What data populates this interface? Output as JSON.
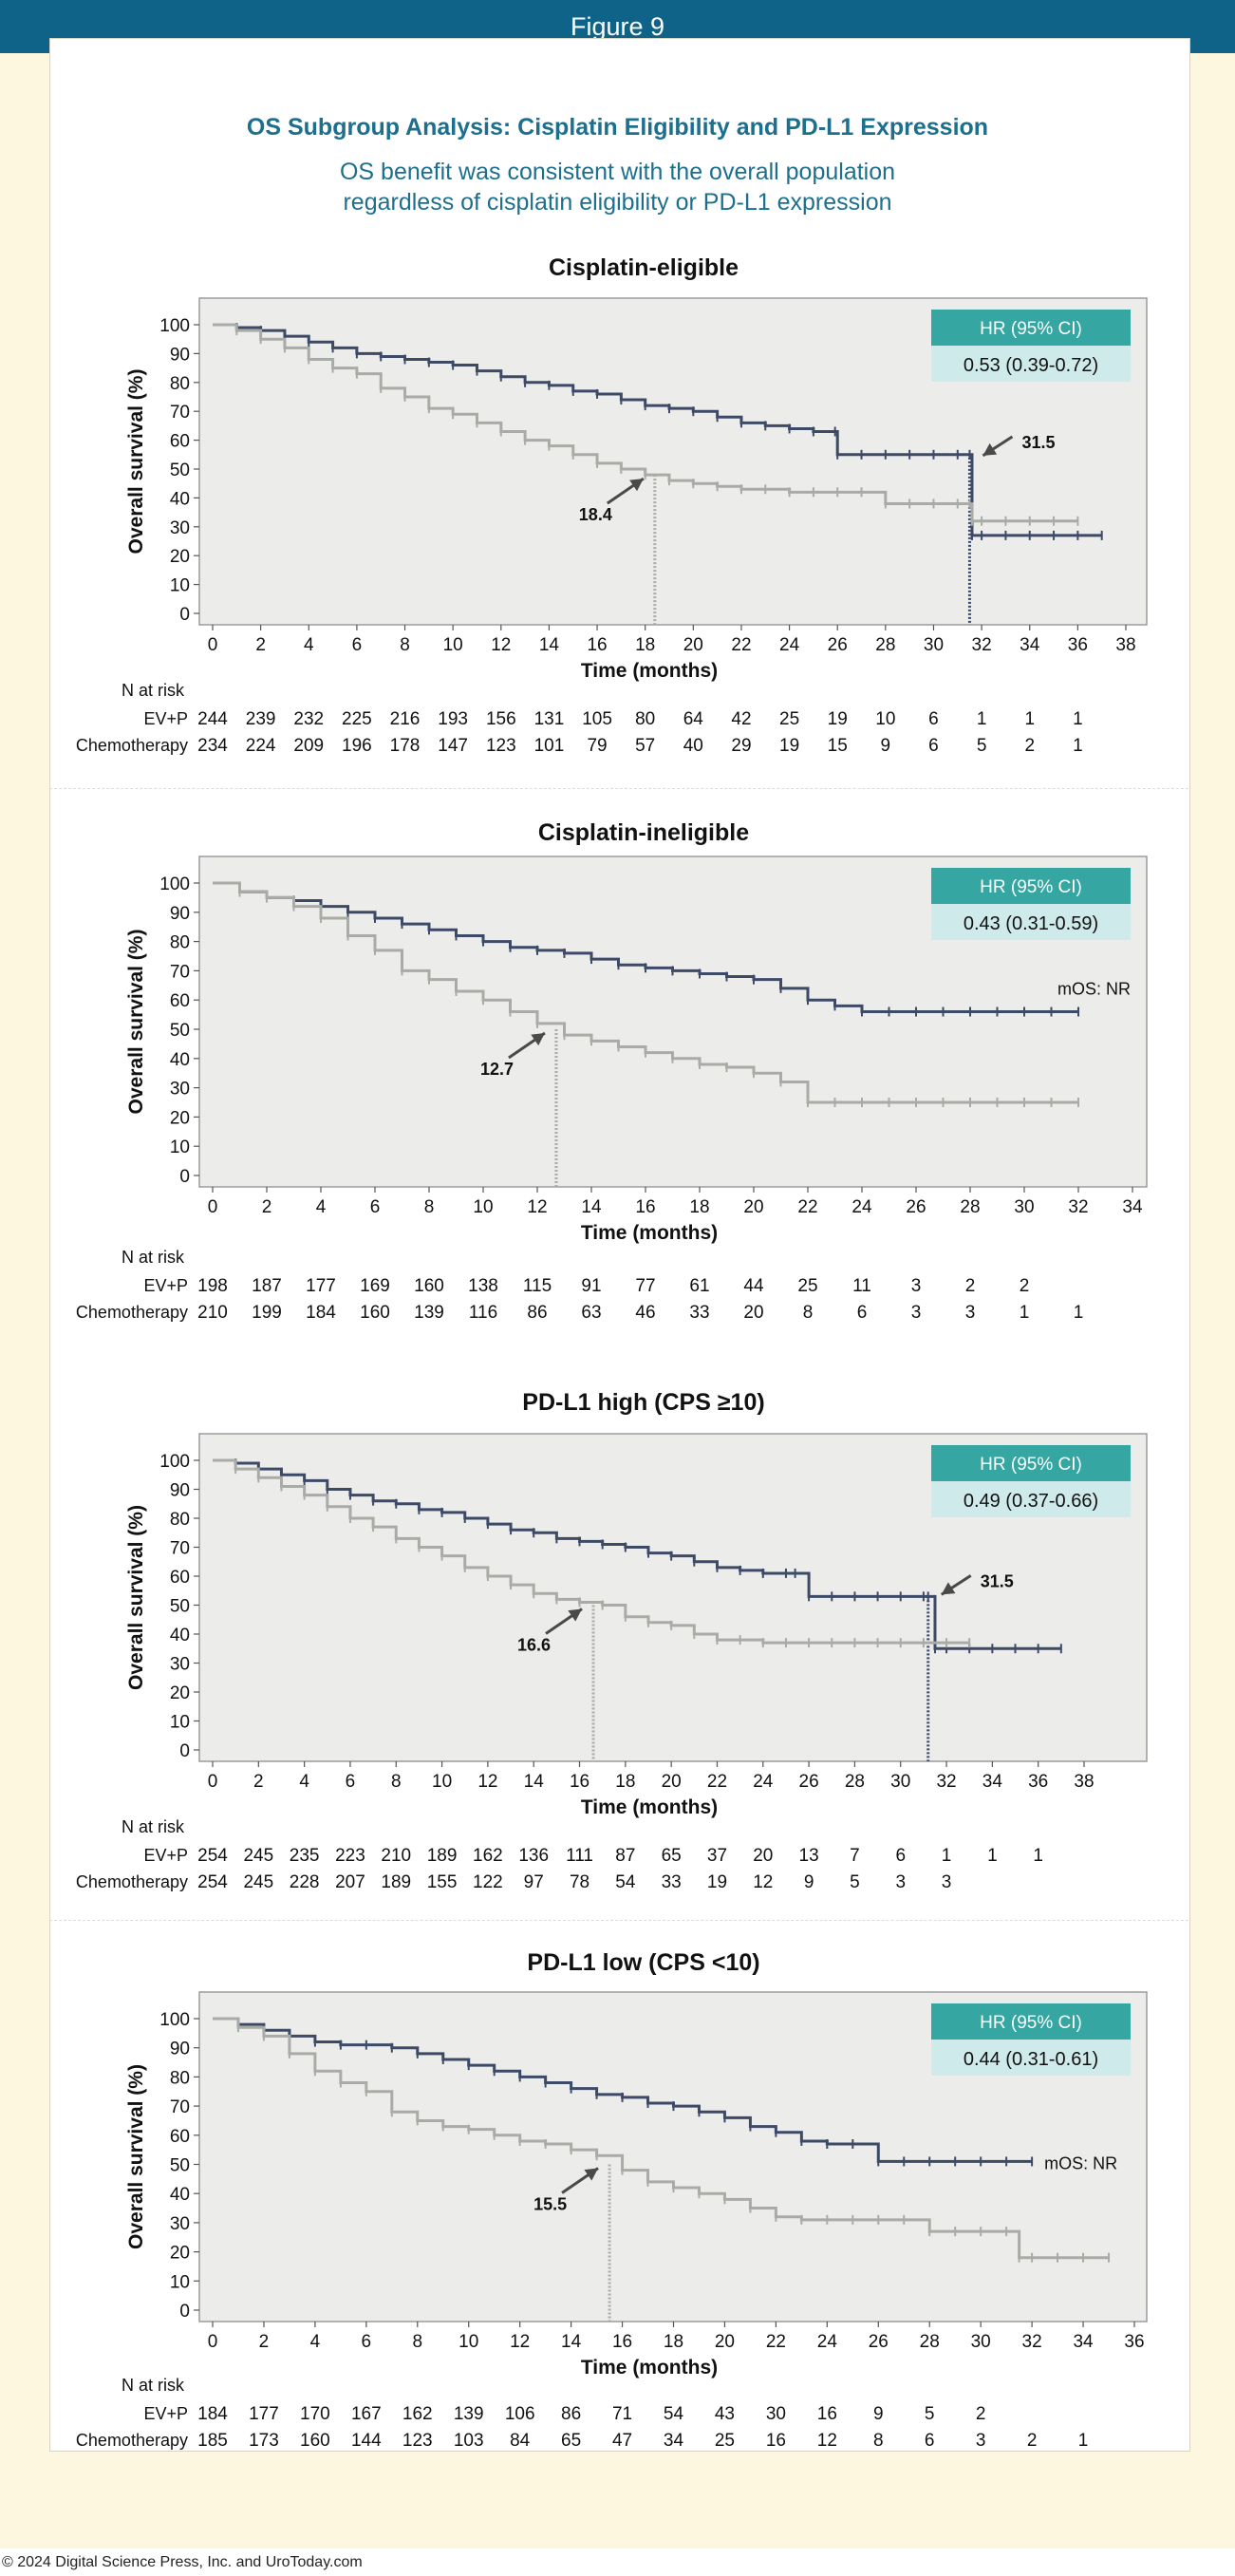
{
  "header": {
    "figure_label": "Figure 9"
  },
  "title": "OS Subgroup Analysis: Cisplatin Eligibility and PD-L1 Expression",
  "subtitle_lines": [
    "OS benefit was consistent with the overall population",
    "regardless of cisplatin eligibility or PD-L1 expression"
  ],
  "copyright": "© 2024 Digital Science Press, Inc. and UroToday.com",
  "colors": {
    "header_bg": "#0f6388",
    "title": "#1d6f8e",
    "ev_p": "#3c4a68",
    "chemo": "#a9aba6",
    "hr_header": "#35a6a2",
    "hr_value": "#cfeaea",
    "plot_bg": "#ececea"
  },
  "chart_data": [
    {
      "type": "line",
      "title": "Cisplatin-eligible",
      "xlabel": "Time (months)",
      "ylabel": "Overall survival (%)",
      "xlim": [
        0,
        38
      ],
      "ylim": [
        0,
        100
      ],
      "xticks": [
        0,
        2,
        4,
        6,
        8,
        10,
        12,
        14,
        16,
        18,
        20,
        22,
        24,
        26,
        28,
        30,
        32,
        34,
        36,
        38
      ],
      "yticks": [
        0,
        10,
        20,
        30,
        40,
        50,
        60,
        70,
        80,
        90,
        100
      ],
      "hr_box": {
        "header": "HR (95% CI)",
        "value": "0.53 (0.39-0.72)"
      },
      "median_annotations": [
        {
          "series": "EV+P",
          "label": "31.5",
          "x": 31.5,
          "y": 54
        },
        {
          "series": "Chemotherapy",
          "label": "18.4",
          "x": 18.4,
          "y": 48
        }
      ],
      "end_label": "",
      "series": [
        {
          "name": "EV+P",
          "x": [
            0,
            1,
            2,
            3,
            4,
            5,
            6,
            7,
            8,
            9,
            10,
            11,
            12,
            13,
            14,
            15,
            16,
            17,
            18,
            19,
            20,
            21,
            22,
            23,
            24,
            25,
            25.9,
            26,
            27,
            28,
            29,
            30,
            31,
            31.5,
            31.6,
            32,
            33,
            34,
            35,
            36,
            37
          ],
          "y": [
            100,
            99,
            98,
            96,
            94,
            92,
            90,
            89,
            88,
            87,
            86,
            84,
            82,
            80,
            79,
            77,
            76,
            74,
            72,
            71,
            70,
            68,
            66,
            65,
            64,
            63,
            63,
            55,
            55,
            55,
            55,
            55,
            55,
            55,
            27,
            27,
            27,
            27,
            27,
            27,
            27
          ]
        },
        {
          "name": "Chemotherapy",
          "x": [
            0,
            1,
            2,
            3,
            4,
            5,
            6,
            7,
            8,
            9,
            10,
            11,
            12,
            13,
            14,
            15,
            16,
            17,
            18,
            19,
            20,
            21,
            22,
            23,
            24,
            25,
            26,
            27,
            28,
            29,
            30,
            31,
            31.5,
            31.6,
            32,
            33,
            34,
            35,
            36
          ],
          "y": [
            100,
            98,
            95,
            92,
            88,
            85,
            83,
            78,
            75,
            71,
            69,
            66,
            63,
            60,
            58,
            55,
            52,
            50,
            48,
            46,
            45,
            44,
            43,
            43,
            42,
            42,
            42,
            42,
            38,
            38,
            38,
            38,
            38,
            32,
            32,
            32,
            32,
            32,
            32
          ]
        }
      ],
      "risk_table": {
        "heading": "N at risk",
        "rows": [
          {
            "label": "EV+P",
            "values": [
              "244",
              "239",
              "232",
              "225",
              "216",
              "193",
              "156",
              "131",
              "105",
              "80",
              "64",
              "42",
              "25",
              "19",
              "10",
              "6",
              "1",
              "1",
              "1"
            ]
          },
          {
            "label": "Chemotherapy",
            "values": [
              "234",
              "224",
              "209",
              "196",
              "178",
              "147",
              "123",
              "101",
              "79",
              "57",
              "40",
              "29",
              "19",
              "15",
              "9",
              "6",
              "5",
              "2",
              "1"
            ]
          }
        ]
      }
    },
    {
      "type": "line",
      "title": "Cisplatin-ineligible",
      "xlabel": "Time (months)",
      "ylabel": "Overall survival (%)",
      "xlim": [
        0,
        34
      ],
      "ylim": [
        0,
        100
      ],
      "xticks": [
        0,
        2,
        4,
        6,
        8,
        10,
        12,
        14,
        16,
        18,
        20,
        22,
        24,
        26,
        28,
        30,
        32,
        34
      ],
      "yticks": [
        0,
        10,
        20,
        30,
        40,
        50,
        60,
        70,
        80,
        90,
        100
      ],
      "hr_box": {
        "header": "HR (95% CI)",
        "value": "0.43 (0.31-0.59)"
      },
      "median_annotations": [
        {
          "series": "Chemotherapy",
          "label": "12.7",
          "x": 12.7,
          "y": 50
        }
      ],
      "end_label": "mOS: NR",
      "series": [
        {
          "name": "EV+P",
          "x": [
            0,
            1,
            2,
            3,
            4,
            5,
            6,
            7,
            8,
            9,
            10,
            11,
            12,
            13,
            14,
            15,
            16,
            17,
            18,
            19,
            20,
            21,
            22,
            23,
            24,
            25,
            26,
            27,
            28,
            29,
            30,
            31,
            32
          ],
          "y": [
            100,
            97,
            95,
            94,
            92,
            90,
            88,
            86,
            84,
            82,
            80,
            78,
            77,
            76,
            74,
            72,
            71,
            70,
            69,
            68,
            67,
            64,
            60,
            58,
            56,
            56,
            56,
            56,
            56,
            56,
            56,
            56,
            56
          ]
        },
        {
          "name": "Chemotherapy",
          "x": [
            0,
            1,
            2,
            3,
            4,
            5,
            6,
            7,
            8,
            9,
            10,
            11,
            12,
            13,
            14,
            15,
            16,
            17,
            18,
            19,
            20,
            21,
            22,
            23,
            24,
            25,
            26,
            27,
            28,
            29,
            30,
            31,
            32
          ],
          "y": [
            100,
            97,
            95,
            92,
            88,
            82,
            77,
            70,
            67,
            63,
            60,
            56,
            52,
            48,
            46,
            44,
            42,
            40,
            38,
            37,
            35,
            32,
            25,
            25,
            25,
            25,
            25,
            25,
            25,
            25,
            25,
            25,
            25
          ]
        }
      ],
      "risk_table": {
        "heading": "N at risk",
        "rows": [
          {
            "label": "EV+P",
            "values": [
              "198",
              "187",
              "177",
              "169",
              "160",
              "138",
              "115",
              "91",
              "77",
              "61",
              "44",
              "25",
              "11",
              "3",
              "2",
              "2"
            ]
          },
          {
            "label": "Chemotherapy",
            "values": [
              "210",
              "199",
              "184",
              "160",
              "139",
              "116",
              "86",
              "63",
              "46",
              "33",
              "20",
              "8",
              "6",
              "3",
              "3",
              "1",
              "1"
            ]
          }
        ]
      }
    },
    {
      "type": "line",
      "title": "PD-L1 high (CPS ≥10)",
      "xlabel": "Time (months)",
      "ylabel": "Overall survival (%)",
      "xlim": [
        0,
        38
      ],
      "ylim": [
        0,
        100
      ],
      "xticks": [
        0,
        2,
        4,
        6,
        8,
        10,
        12,
        14,
        16,
        18,
        20,
        22,
        24,
        26,
        28,
        30,
        32,
        34,
        36,
        38
      ],
      "yticks": [
        0,
        10,
        20,
        30,
        40,
        50,
        60,
        70,
        80,
        90,
        100
      ],
      "hr_box": {
        "header": "HR (95% CI)",
        "value": "0.49 (0.37-0.66)"
      },
      "median_annotations": [
        {
          "series": "EV+P",
          "label": "31.5",
          "x": 31.2,
          "y": 53
        },
        {
          "series": "Chemotherapy",
          "label": "16.6",
          "x": 16.6,
          "y": 50
        }
      ],
      "end_label": "",
      "series": [
        {
          "name": "EV+P",
          "x": [
            0,
            1,
            2,
            3,
            4,
            5,
            6,
            7,
            8,
            9,
            10,
            11,
            12,
            13,
            14,
            15,
            16,
            17,
            18,
            19,
            20,
            21,
            22,
            23,
            24,
            25,
            25.4,
            26,
            27,
            28,
            29,
            30,
            31,
            31.2,
            31.5,
            32,
            33,
            34,
            35,
            36,
            37
          ],
          "y": [
            100,
            99,
            97,
            95,
            93,
            90,
            88,
            86,
            85,
            83,
            82,
            80,
            78,
            76,
            75,
            73,
            72,
            71,
            70,
            68,
            67,
            65,
            63,
            62,
            61,
            61,
            61,
            53,
            53,
            53,
            53,
            53,
            53,
            53,
            35,
            35,
            35,
            35,
            35,
            35,
            35
          ]
        },
        {
          "name": "Chemotherapy",
          "x": [
            0,
            1,
            2,
            3,
            4,
            5,
            6,
            7,
            8,
            9,
            10,
            11,
            12,
            13,
            14,
            15,
            16,
            17,
            18,
            19,
            20,
            21,
            22,
            23,
            24,
            25,
            26,
            27,
            28,
            29,
            30,
            31,
            32,
            33
          ],
          "y": [
            100,
            97,
            94,
            91,
            88,
            84,
            80,
            77,
            73,
            70,
            67,
            63,
            60,
            57,
            54,
            52,
            51,
            50,
            46,
            44,
            43,
            40,
            38,
            38,
            37,
            37,
            37,
            37,
            37,
            37,
            37,
            37,
            37,
            37
          ]
        }
      ],
      "risk_table": {
        "heading": "N at risk",
        "rows": [
          {
            "label": "EV+P",
            "values": [
              "254",
              "245",
              "235",
              "223",
              "210",
              "189",
              "162",
              "136",
              "111",
              "87",
              "65",
              "37",
              "20",
              "13",
              "7",
              "6",
              "1",
              "1",
              "1"
            ]
          },
          {
            "label": "Chemotherapy",
            "values": [
              "254",
              "245",
              "228",
              "207",
              "189",
              "155",
              "122",
              "97",
              "78",
              "54",
              "33",
              "19",
              "12",
              "9",
              "5",
              "3",
              "3"
            ]
          }
        ]
      }
    },
    {
      "type": "line",
      "title": "PD-L1 low (CPS <10)",
      "xlabel": "Time (months)",
      "ylabel": "Overall survival (%)",
      "xlim": [
        0,
        36
      ],
      "ylim": [
        0,
        100
      ],
      "xticks": [
        0,
        2,
        4,
        6,
        8,
        10,
        12,
        14,
        16,
        18,
        20,
        22,
        24,
        26,
        28,
        30,
        32,
        34,
        36
      ],
      "yticks": [
        0,
        10,
        20,
        30,
        40,
        50,
        60,
        70,
        80,
        90,
        100
      ],
      "hr_box": {
        "header": "HR (95% CI)",
        "value": "0.44 (0.31-0.61)"
      },
      "median_annotations": [
        {
          "series": "Chemotherapy",
          "label": "15.5",
          "x": 15.5,
          "y": 50
        }
      ],
      "end_label": "mOS: NR",
      "series": [
        {
          "name": "EV+P",
          "x": [
            0,
            1,
            2,
            3,
            4,
            5,
            6,
            7,
            8,
            9,
            10,
            11,
            12,
            13,
            14,
            15,
            16,
            17,
            18,
            19,
            20,
            21,
            22,
            23,
            24,
            25,
            26,
            27,
            28,
            29,
            30,
            31,
            32
          ],
          "y": [
            100,
            98,
            96,
            94,
            92,
            91,
            91,
            90,
            88,
            86,
            84,
            82,
            80,
            78,
            76,
            74,
            73,
            71,
            70,
            68,
            66,
            63,
            61,
            58,
            57,
            57,
            51,
            51,
            51,
            51,
            51,
            51,
            51
          ]
        },
        {
          "name": "Chemotherapy",
          "x": [
            0,
            1,
            2,
            3,
            4,
            5,
            6,
            7,
            8,
            9,
            10,
            11,
            12,
            13,
            14,
            15,
            16,
            17,
            18,
            19,
            20,
            21,
            22,
            23,
            24,
            25,
            26,
            27,
            28,
            29,
            30,
            31,
            31.5,
            32,
            33,
            34,
            35
          ],
          "y": [
            100,
            97,
            94,
            88,
            82,
            78,
            75,
            68,
            65,
            63,
            62,
            60,
            58,
            57,
            55,
            53,
            48,
            44,
            42,
            40,
            38,
            35,
            32,
            31,
            31,
            31,
            31,
            31,
            27,
            27,
            27,
            27,
            18,
            18,
            18,
            18,
            18
          ]
        }
      ],
      "risk_table": {
        "heading": "N at risk",
        "rows": [
          {
            "label": "EV+P",
            "values": [
              "184",
              "177",
              "170",
              "167",
              "162",
              "139",
              "106",
              "86",
              "71",
              "54",
              "43",
              "30",
              "16",
              "9",
              "5",
              "2"
            ]
          },
          {
            "label": "Chemotherapy",
            "values": [
              "185",
              "173",
              "160",
              "144",
              "123",
              "103",
              "84",
              "65",
              "47",
              "34",
              "25",
              "16",
              "12",
              "8",
              "6",
              "3",
              "2",
              "1"
            ]
          }
        ]
      }
    }
  ]
}
